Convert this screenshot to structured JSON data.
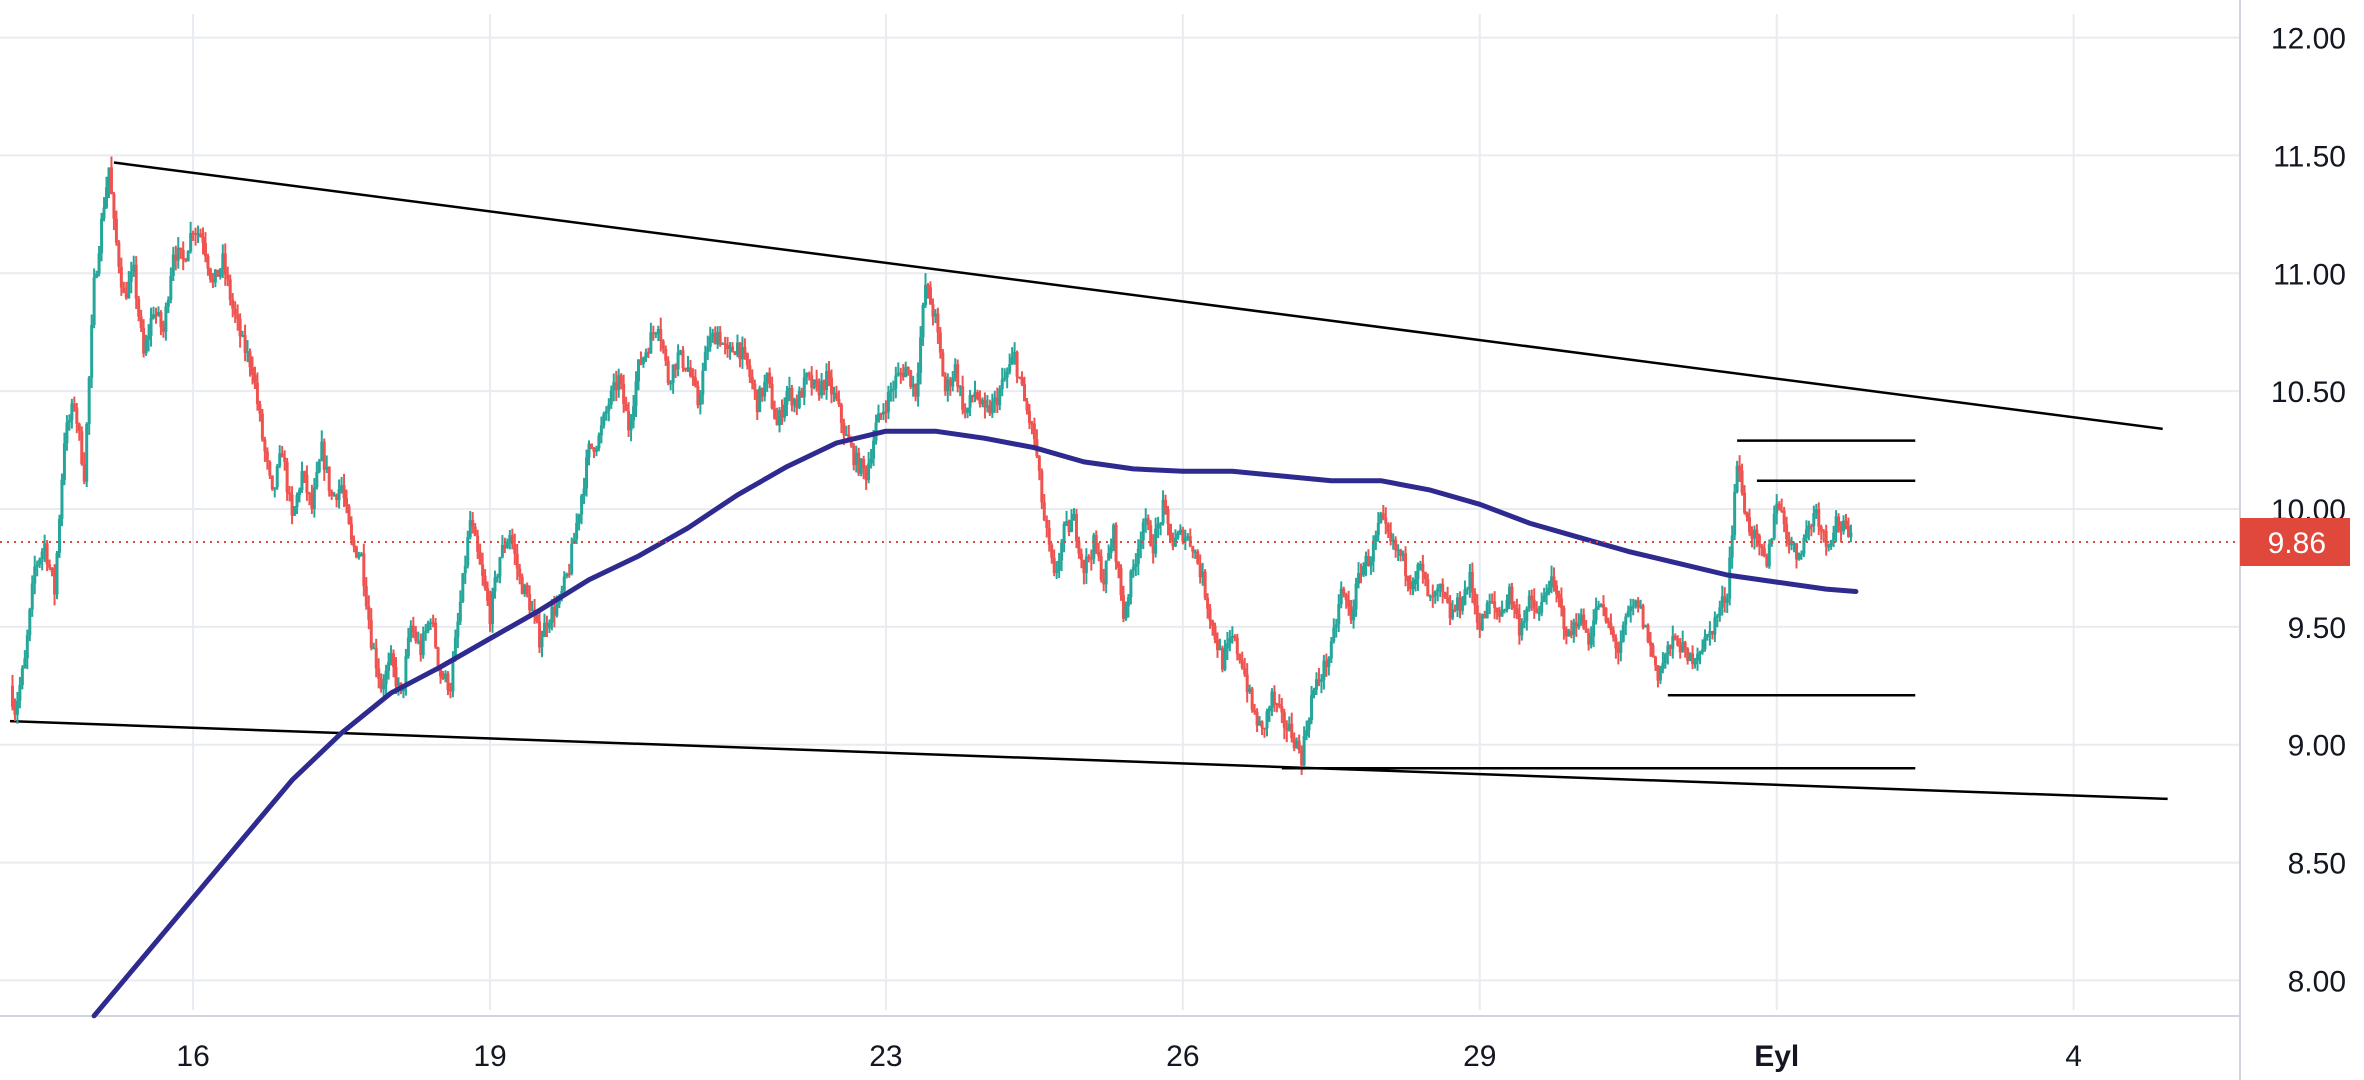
{
  "chart_data": {
    "type": "candlestick",
    "y_axis": {
      "ticks": [
        "12.00",
        "11.50",
        "11.00",
        "10.50",
        "10.00",
        "9.50",
        "9.00",
        "8.50",
        "8.00"
      ],
      "tick_values": [
        12.0,
        11.5,
        11.0,
        10.5,
        10.0,
        9.5,
        9.0,
        8.5,
        8.0
      ],
      "ylim": [
        7.9,
        12.1
      ],
      "position": "right"
    },
    "x_axis": {
      "ticks": [
        "16",
        "19",
        "23",
        "26",
        "29",
        "Eyl",
        "4"
      ],
      "tick_positions": [
        2,
        5,
        9,
        12,
        15,
        18,
        21
      ],
      "bold_ticks": [
        "Eyl"
      ],
      "xlim": [
        0.15,
        22.6
      ]
    },
    "grid": true,
    "last_price": {
      "label": "9.86",
      "value": 9.86,
      "color": "#e0483c"
    },
    "colors": {
      "up": "#26a69a",
      "down": "#ef5350",
      "moving_average": "#2e2a8f",
      "trendlines": "#000000"
    },
    "close_path": [
      [
        0.15,
        9.25
      ],
      [
        0.2,
        9.15
      ],
      [
        0.3,
        9.35
      ],
      [
        0.4,
        9.75
      ],
      [
        0.5,
        9.85
      ],
      [
        0.6,
        9.65
      ],
      [
        0.7,
        10.3
      ],
      [
        0.8,
        10.45
      ],
      [
        0.9,
        10.15
      ],
      [
        1.0,
        10.95
      ],
      [
        1.1,
        11.3
      ],
      [
        1.15,
        11.45
      ],
      [
        1.2,
        11.2
      ],
      [
        1.3,
        10.9
      ],
      [
        1.4,
        11.0
      ],
      [
        1.5,
        10.65
      ],
      [
        1.6,
        10.85
      ],
      [
        1.7,
        10.75
      ],
      [
        1.8,
        11.1
      ],
      [
        1.9,
        11.05
      ],
      [
        2.0,
        11.2
      ],
      [
        2.1,
        11.15
      ],
      [
        2.2,
        10.95
      ],
      [
        2.3,
        11.05
      ],
      [
        2.4,
        10.85
      ],
      [
        2.5,
        10.7
      ],
      [
        2.6,
        10.6
      ],
      [
        2.7,
        10.3
      ],
      [
        2.8,
        10.05
      ],
      [
        2.9,
        10.25
      ],
      [
        3.0,
        9.95
      ],
      [
        3.1,
        10.15
      ],
      [
        3.2,
        10.0
      ],
      [
        3.3,
        10.25
      ],
      [
        3.4,
        10.05
      ],
      [
        3.5,
        10.1
      ],
      [
        3.6,
        9.85
      ],
      [
        3.7,
        9.8
      ],
      [
        3.8,
        9.45
      ],
      [
        3.9,
        9.25
      ],
      [
        4.0,
        9.35
      ],
      [
        4.1,
        9.2
      ],
      [
        4.2,
        9.5
      ],
      [
        4.3,
        9.4
      ],
      [
        4.4,
        9.55
      ],
      [
        4.5,
        9.3
      ],
      [
        4.6,
        9.25
      ],
      [
        4.7,
        9.6
      ],
      [
        4.8,
        9.95
      ],
      [
        4.9,
        9.75
      ],
      [
        5.0,
        9.55
      ],
      [
        5.1,
        9.8
      ],
      [
        5.2,
        9.9
      ],
      [
        5.3,
        9.7
      ],
      [
        5.4,
        9.6
      ],
      [
        5.5,
        9.45
      ],
      [
        5.6,
        9.55
      ],
      [
        5.7,
        9.6
      ],
      [
        5.8,
        9.75
      ],
      [
        5.9,
        10.0
      ],
      [
        6.0,
        10.25
      ],
      [
        6.1,
        10.3
      ],
      [
        6.2,
        10.45
      ],
      [
        6.3,
        10.55
      ],
      [
        6.4,
        10.35
      ],
      [
        6.5,
        10.6
      ],
      [
        6.6,
        10.7
      ],
      [
        6.7,
        10.8
      ],
      [
        6.8,
        10.55
      ],
      [
        6.9,
        10.65
      ],
      [
        7.0,
        10.6
      ],
      [
        7.1,
        10.45
      ],
      [
        7.2,
        10.7
      ],
      [
        7.3,
        10.75
      ],
      [
        7.4,
        10.65
      ],
      [
        7.5,
        10.7
      ],
      [
        7.6,
        10.6
      ],
      [
        7.7,
        10.45
      ],
      [
        7.8,
        10.55
      ],
      [
        7.9,
        10.35
      ],
      [
        8.0,
        10.5
      ],
      [
        8.1,
        10.45
      ],
      [
        8.2,
        10.55
      ],
      [
        8.3,
        10.5
      ],
      [
        8.4,
        10.55
      ],
      [
        8.5,
        10.45
      ],
      [
        8.6,
        10.3
      ],
      [
        8.7,
        10.2
      ],
      [
        8.8,
        10.15
      ],
      [
        8.9,
        10.35
      ],
      [
        9.0,
        10.45
      ],
      [
        9.1,
        10.55
      ],
      [
        9.2,
        10.6
      ],
      [
        9.3,
        10.5
      ],
      [
        9.4,
        10.95
      ],
      [
        9.5,
        10.8
      ],
      [
        9.6,
        10.5
      ],
      [
        9.7,
        10.6
      ],
      [
        9.8,
        10.4
      ],
      [
        9.9,
        10.5
      ],
      [
        10.0,
        10.4
      ],
      [
        10.1,
        10.45
      ],
      [
        10.2,
        10.55
      ],
      [
        10.3,
        10.65
      ],
      [
        10.4,
        10.45
      ],
      [
        10.5,
        10.3
      ],
      [
        10.6,
        9.95
      ],
      [
        10.7,
        9.7
      ],
      [
        10.8,
        9.9
      ],
      [
        10.9,
        9.95
      ],
      [
        11.0,
        9.75
      ],
      [
        11.1,
        9.85
      ],
      [
        11.2,
        9.7
      ],
      [
        11.3,
        9.9
      ],
      [
        11.4,
        9.55
      ],
      [
        11.5,
        9.75
      ],
      [
        11.6,
        9.95
      ],
      [
        11.7,
        9.85
      ],
      [
        11.8,
        10.0
      ],
      [
        11.9,
        9.85
      ],
      [
        12.0,
        9.9
      ],
      [
        12.1,
        9.85
      ],
      [
        12.2,
        9.7
      ],
      [
        12.3,
        9.5
      ],
      [
        12.4,
        9.35
      ],
      [
        12.5,
        9.45
      ],
      [
        12.6,
        9.35
      ],
      [
        12.7,
        9.15
      ],
      [
        12.8,
        9.05
      ],
      [
        12.9,
        9.2
      ],
      [
        13.0,
        9.1
      ],
      [
        13.1,
        9.05
      ],
      [
        13.2,
        8.95
      ],
      [
        13.3,
        9.2
      ],
      [
        13.4,
        9.3
      ],
      [
        13.5,
        9.4
      ],
      [
        13.6,
        9.65
      ],
      [
        13.7,
        9.55
      ],
      [
        13.8,
        9.75
      ],
      [
        13.9,
        9.8
      ],
      [
        14.0,
        9.95
      ],
      [
        14.1,
        9.85
      ],
      [
        14.2,
        9.8
      ],
      [
        14.3,
        9.7
      ],
      [
        14.4,
        9.75
      ],
      [
        14.5,
        9.6
      ],
      [
        14.6,
        9.65
      ],
      [
        14.7,
        9.55
      ],
      [
        14.8,
        9.6
      ],
      [
        14.9,
        9.7
      ],
      [
        15.0,
        9.5
      ],
      [
        15.1,
        9.6
      ],
      [
        15.2,
        9.55
      ],
      [
        15.3,
        9.65
      ],
      [
        15.4,
        9.5
      ],
      [
        15.5,
        9.6
      ],
      [
        15.6,
        9.55
      ],
      [
        15.7,
        9.7
      ],
      [
        15.8,
        9.6
      ],
      [
        15.9,
        9.45
      ],
      [
        16.0,
        9.55
      ],
      [
        16.1,
        9.45
      ],
      [
        16.2,
        9.6
      ],
      [
        16.3,
        9.5
      ],
      [
        16.4,
        9.4
      ],
      [
        16.5,
        9.55
      ],
      [
        16.6,
        9.6
      ],
      [
        16.7,
        9.45
      ],
      [
        16.8,
        9.3
      ],
      [
        16.9,
        9.4
      ],
      [
        17.0,
        9.45
      ],
      [
        17.1,
        9.35
      ],
      [
        17.2,
        9.4
      ],
      [
        17.3,
        9.45
      ],
      [
        17.4,
        9.55
      ],
      [
        17.5,
        9.65
      ],
      [
        17.6,
        10.2
      ],
      [
        17.7,
        9.95
      ],
      [
        17.8,
        9.85
      ],
      [
        17.9,
        9.75
      ],
      [
        18.0,
        10.05
      ],
      [
        18.1,
        9.9
      ],
      [
        18.2,
        9.8
      ],
      [
        18.3,
        9.9
      ],
      [
        18.4,
        10.0
      ],
      [
        18.5,
        9.85
      ],
      [
        18.6,
        9.95
      ],
      [
        18.7,
        9.9
      ],
      [
        18.75,
        9.86
      ]
    ],
    "moving_average": [
      [
        1.0,
        7.85
      ],
      [
        1.5,
        8.1
      ],
      [
        2.0,
        8.35
      ],
      [
        2.5,
        8.6
      ],
      [
        3.0,
        8.85
      ],
      [
        3.5,
        9.05
      ],
      [
        4.0,
        9.22
      ],
      [
        4.5,
        9.33
      ],
      [
        5.0,
        9.45
      ],
      [
        5.5,
        9.57
      ],
      [
        6.0,
        9.7
      ],
      [
        6.5,
        9.8
      ],
      [
        7.0,
        9.92
      ],
      [
        7.5,
        10.06
      ],
      [
        8.0,
        10.18
      ],
      [
        8.5,
        10.28
      ],
      [
        9.0,
        10.33
      ],
      [
        9.5,
        10.33
      ],
      [
        10.0,
        10.3
      ],
      [
        10.5,
        10.26
      ],
      [
        11.0,
        10.2
      ],
      [
        11.5,
        10.17
      ],
      [
        12.0,
        10.16
      ],
      [
        12.5,
        10.16
      ],
      [
        13.0,
        10.14
      ],
      [
        13.5,
        10.12
      ],
      [
        14.0,
        10.12
      ],
      [
        14.5,
        10.08
      ],
      [
        15.0,
        10.02
      ],
      [
        15.5,
        9.94
      ],
      [
        16.0,
        9.88
      ],
      [
        16.5,
        9.82
      ],
      [
        17.0,
        9.77
      ],
      [
        17.5,
        9.72
      ],
      [
        18.0,
        9.69
      ],
      [
        18.5,
        9.66
      ],
      [
        18.8,
        9.65
      ]
    ],
    "trendlines": [
      {
        "x1": 1.2,
        "y1": 11.47,
        "x2": 21.9,
        "y2": 10.34
      },
      {
        "x1": 0.15,
        "y1": 9.1,
        "x2": 21.95,
        "y2": 8.77
      }
    ],
    "levels": [
      {
        "x1": 17.6,
        "x2": 19.4,
        "y": 10.29
      },
      {
        "x1": 17.8,
        "x2": 19.4,
        "y": 10.12
      },
      {
        "x1": 16.9,
        "x2": 19.4,
        "y": 9.21
      },
      {
        "x1": 13.0,
        "x2": 19.4,
        "y": 8.9
      }
    ]
  }
}
